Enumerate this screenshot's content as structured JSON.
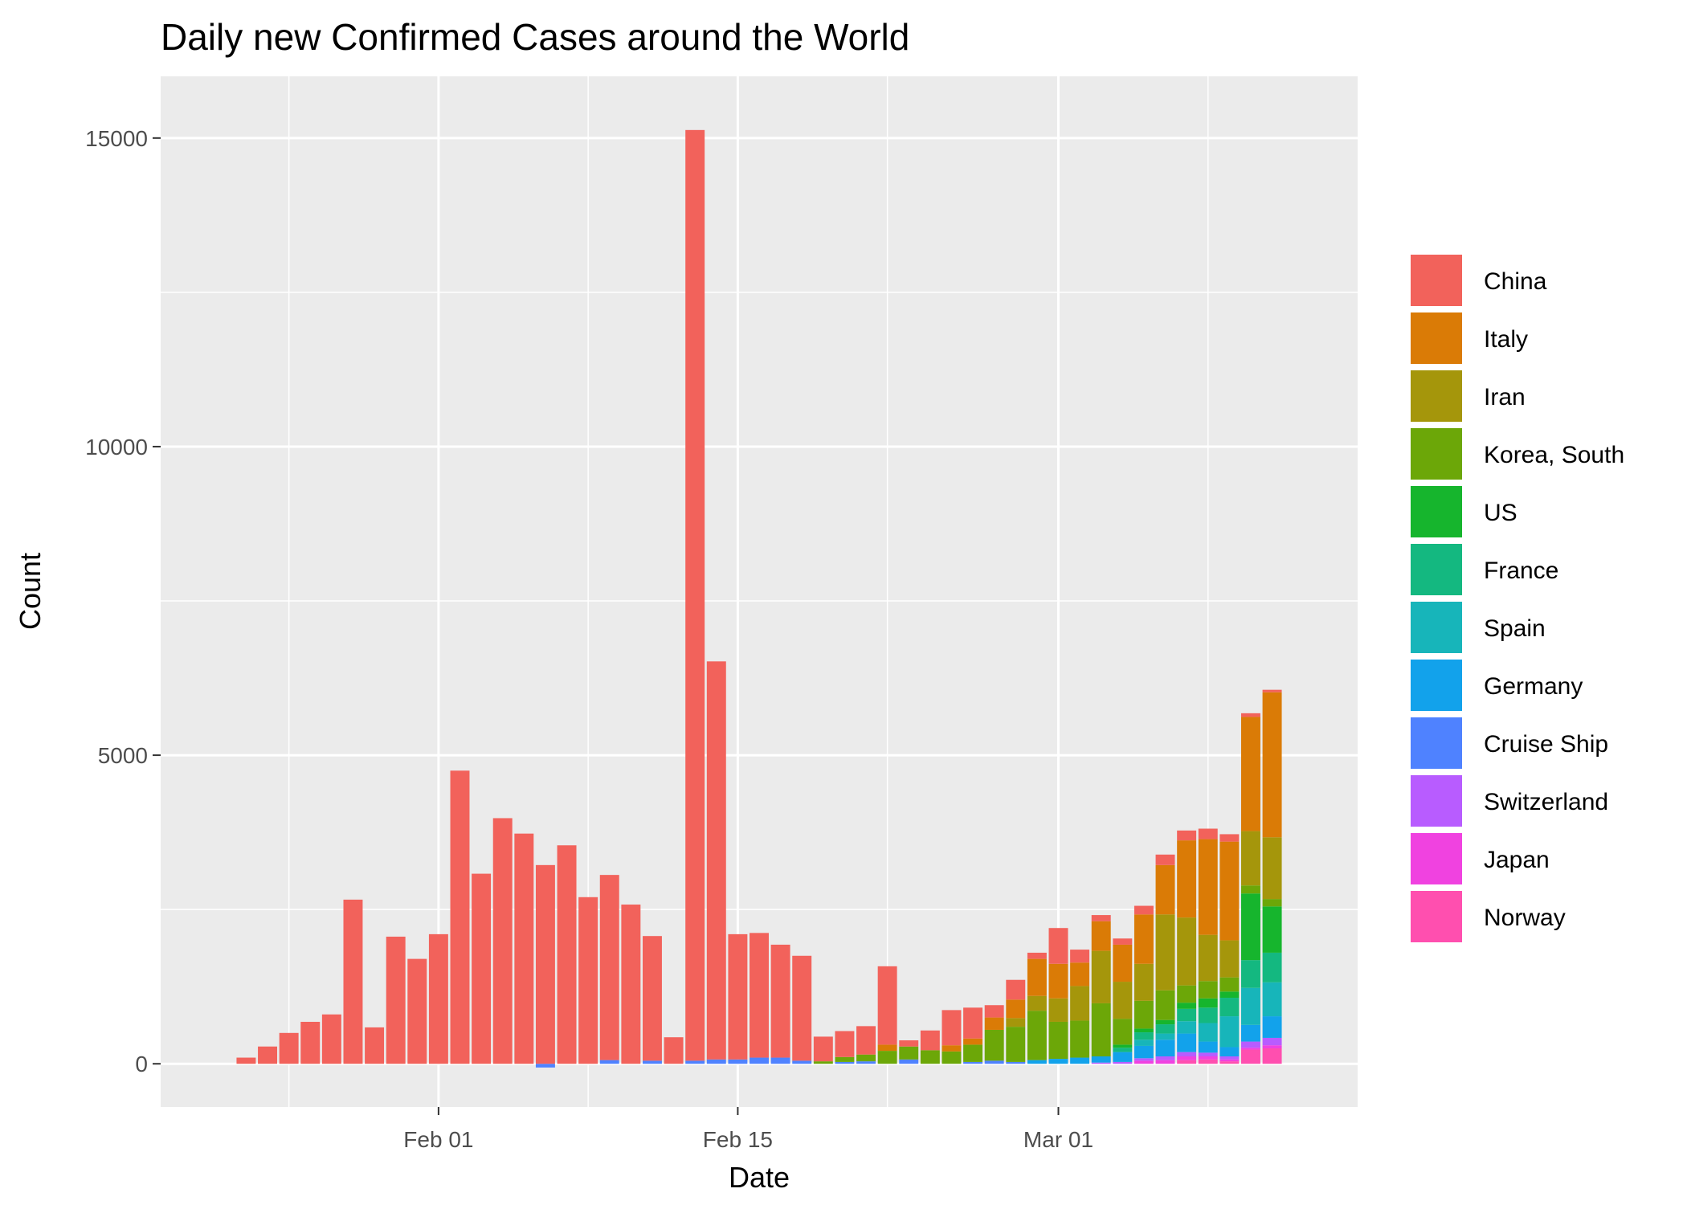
{
  "chart_data": {
    "type": "bar",
    "stacked": true,
    "title": "Daily new Confirmed Cases around the World",
    "xlabel": "Date",
    "ylabel": "Count",
    "ylim": [
      -700,
      16000
    ],
    "yticks": [
      0,
      5000,
      10000,
      15000
    ],
    "xticks": [
      {
        "label": "Feb 01",
        "date": "2020-02-01"
      },
      {
        "label": "Feb 15",
        "date": "2020-02-15"
      },
      {
        "label": "Mar 01",
        "date": "2020-03-01"
      }
    ],
    "xlim": [
      "2020-01-19",
      "2020-03-15"
    ],
    "grid": true,
    "legend_position": "right",
    "categories": [
      "2020-01-23",
      "2020-01-24",
      "2020-01-25",
      "2020-01-26",
      "2020-01-27",
      "2020-01-28",
      "2020-01-29",
      "2020-01-30",
      "2020-01-31",
      "2020-02-01",
      "2020-02-02",
      "2020-02-03",
      "2020-02-04",
      "2020-02-05",
      "2020-02-06",
      "2020-02-07",
      "2020-02-08",
      "2020-02-09",
      "2020-02-10",
      "2020-02-11",
      "2020-02-12",
      "2020-02-13",
      "2020-02-14",
      "2020-02-15",
      "2020-02-16",
      "2020-02-17",
      "2020-02-18",
      "2020-02-19",
      "2020-02-20",
      "2020-02-21",
      "2020-02-22",
      "2020-02-23",
      "2020-02-24",
      "2020-02-25",
      "2020-02-26",
      "2020-02-27",
      "2020-02-28",
      "2020-02-29",
      "2020-03-01",
      "2020-03-02",
      "2020-03-03",
      "2020-03-04",
      "2020-03-05",
      "2020-03-06",
      "2020-03-07",
      "2020-03-08",
      "2020-03-09",
      "2020-03-10",
      "2020-03-11"
    ],
    "series": [
      {
        "name": "Norway",
        "color": "#FF4FAF",
        "values": [
          0,
          0,
          0,
          0,
          0,
          0,
          0,
          0,
          0,
          0,
          0,
          0,
          0,
          0,
          0,
          0,
          0,
          0,
          0,
          0,
          0,
          0,
          0,
          0,
          0,
          0,
          0,
          0,
          0,
          0,
          0,
          0,
          0,
          0,
          0,
          0,
          0,
          0,
          0,
          0,
          0,
          0,
          0,
          0,
          60,
          70,
          40,
          230,
          250
        ]
      },
      {
        "name": "Japan",
        "color": "#F042E0",
        "values": [
          0,
          0,
          0,
          0,
          0,
          0,
          0,
          0,
          0,
          0,
          0,
          0,
          0,
          0,
          0,
          0,
          0,
          0,
          0,
          0,
          0,
          0,
          0,
          0,
          0,
          0,
          0,
          0,
          0,
          0,
          0,
          0,
          0,
          0,
          0,
          0,
          0,
          0,
          0,
          0,
          0,
          0,
          50,
          60,
          60,
          50,
          30,
          30,
          50
        ]
      },
      {
        "name": "Switzerland",
        "color": "#B85CFF",
        "values": [
          0,
          0,
          0,
          0,
          0,
          0,
          0,
          0,
          0,
          0,
          0,
          0,
          0,
          0,
          0,
          0,
          0,
          0,
          0,
          0,
          0,
          0,
          0,
          0,
          0,
          0,
          0,
          0,
          0,
          0,
          0,
          0,
          0,
          0,
          0,
          0,
          0,
          0,
          0,
          0,
          20,
          30,
          40,
          60,
          70,
          60,
          50,
          100,
          120
        ]
      },
      {
        "name": "Cruise Ship",
        "color": "#4F82FF",
        "values": [
          0,
          0,
          0,
          0,
          0,
          0,
          0,
          0,
          0,
          0,
          0,
          0,
          0,
          0,
          -60,
          0,
          0,
          60,
          0,
          50,
          0,
          50,
          70,
          70,
          100,
          100,
          50,
          0,
          30,
          40,
          0,
          70,
          0,
          0,
          30,
          50,
          30,
          0,
          0,
          0,
          0,
          0,
          0,
          0,
          0,
          0,
          0,
          0,
          0
        ]
      },
      {
        "name": "Germany",
        "color": "#12A2EB",
        "values": [
          0,
          0,
          0,
          0,
          0,
          0,
          0,
          0,
          0,
          0,
          0,
          0,
          0,
          0,
          0,
          0,
          0,
          0,
          0,
          0,
          0,
          0,
          0,
          0,
          0,
          0,
          0,
          0,
          0,
          0,
          0,
          0,
          0,
          0,
          0,
          0,
          0,
          60,
          80,
          100,
          100,
          160,
          200,
          270,
          300,
          180,
          150,
          270,
          350
        ]
      },
      {
        "name": "Spain",
        "color": "#17B5BA",
        "values": [
          0,
          0,
          0,
          0,
          0,
          0,
          0,
          0,
          0,
          0,
          0,
          0,
          0,
          0,
          0,
          0,
          0,
          0,
          0,
          0,
          0,
          0,
          0,
          0,
          0,
          0,
          0,
          0,
          0,
          0,
          0,
          0,
          0,
          0,
          0,
          0,
          0,
          0,
          0,
          0,
          0,
          0,
          100,
          100,
          200,
          300,
          500,
          600,
          550
        ]
      },
      {
        "name": "France",
        "color": "#14B880",
        "values": [
          0,
          0,
          0,
          0,
          0,
          0,
          0,
          0,
          0,
          0,
          0,
          0,
          0,
          0,
          0,
          0,
          0,
          0,
          0,
          0,
          0,
          0,
          0,
          0,
          0,
          0,
          0,
          0,
          0,
          0,
          0,
          0,
          0,
          0,
          0,
          0,
          0,
          0,
          0,
          0,
          0,
          70,
          120,
          150,
          200,
          250,
          300,
          450,
          480
        ]
      },
      {
        "name": "US",
        "color": "#16B52D",
        "values": [
          0,
          0,
          0,
          0,
          0,
          0,
          0,
          0,
          0,
          0,
          0,
          0,
          0,
          0,
          0,
          0,
          0,
          0,
          0,
          0,
          0,
          0,
          0,
          0,
          0,
          0,
          0,
          0,
          0,
          0,
          0,
          0,
          0,
          0,
          0,
          0,
          0,
          0,
          0,
          0,
          0,
          50,
          60,
          70,
          100,
          150,
          100,
          1080,
          750
        ]
      },
      {
        "name": "Korea, South",
        "color": "#6CA708",
        "values": [
          0,
          0,
          0,
          0,
          0,
          0,
          0,
          0,
          0,
          0,
          0,
          0,
          0,
          0,
          0,
          0,
          0,
          0,
          0,
          0,
          0,
          0,
          0,
          0,
          0,
          0,
          0,
          40,
          80,
          110,
          210,
          210,
          220,
          200,
          280,
          500,
          570,
          800,
          600,
          600,
          860,
          420,
          450,
          480,
          280,
          280,
          230,
          130,
          120
        ]
      },
      {
        "name": "Iran",
        "color": "#A5960B",
        "values": [
          0,
          0,
          0,
          0,
          0,
          0,
          0,
          0,
          0,
          0,
          0,
          0,
          0,
          0,
          0,
          0,
          0,
          0,
          0,
          0,
          0,
          0,
          0,
          0,
          0,
          0,
          0,
          0,
          0,
          0,
          0,
          0,
          0,
          0,
          0,
          0,
          140,
          240,
          380,
          560,
          850,
          600,
          600,
          1230,
          1100,
          750,
          600,
          880,
          1000
        ]
      },
      {
        "name": "Italy",
        "color": "#DA7B06",
        "values": [
          0,
          0,
          0,
          0,
          0,
          0,
          0,
          0,
          0,
          0,
          0,
          0,
          0,
          0,
          0,
          0,
          0,
          0,
          0,
          0,
          0,
          0,
          0,
          0,
          0,
          0,
          0,
          0,
          0,
          0,
          100,
          0,
          0,
          100,
          100,
          200,
          300,
          600,
          560,
          380,
          480,
          600,
          800,
          800,
          1250,
          1550,
          1600,
          1850,
          2350
        ]
      },
      {
        "name": "China",
        "color": "#F2625B",
        "values": [
          100,
          280,
          500,
          680,
          800,
          2660,
          590,
          2060,
          1700,
          2100,
          4750,
          3080,
          3980,
          3730,
          3220,
          3540,
          2700,
          3000,
          2580,
          2020,
          430,
          15080,
          6450,
          2030,
          2020,
          1830,
          1700,
          400,
          420,
          460,
          1270,
          100,
          320,
          570,
          500,
          200,
          320,
          100,
          580,
          210,
          100,
          100,
          140,
          170,
          160,
          170,
          120,
          60,
          40
        ]
      }
    ]
  }
}
